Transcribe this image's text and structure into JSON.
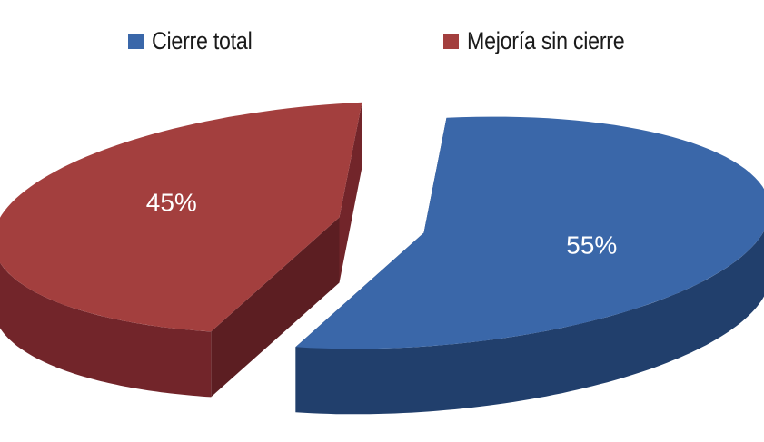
{
  "chart_data": {
    "type": "pie",
    "style": "3d-exploded",
    "title": "",
    "legend_position": "top",
    "series": [
      {
        "name": "",
        "categories": [
          "Cierre total",
          "Mejoría sin cierre"
        ],
        "values": [
          55,
          45
        ],
        "data_labels": [
          "55%",
          "45%"
        ]
      }
    ]
  },
  "legend": [
    {
      "label": "Cierre total",
      "color": "#3a67a9"
    },
    {
      "label": "Mejoría sin cierre",
      "color": "#a33f3e"
    }
  ],
  "colors": {
    "slice_top": [
      "#3a67a9",
      "#a33f3e"
    ],
    "slice_side": [
      "#213f6c",
      "#72252a"
    ],
    "slice_side_dark": [
      "#1a3259",
      "#5c1e22"
    ]
  }
}
